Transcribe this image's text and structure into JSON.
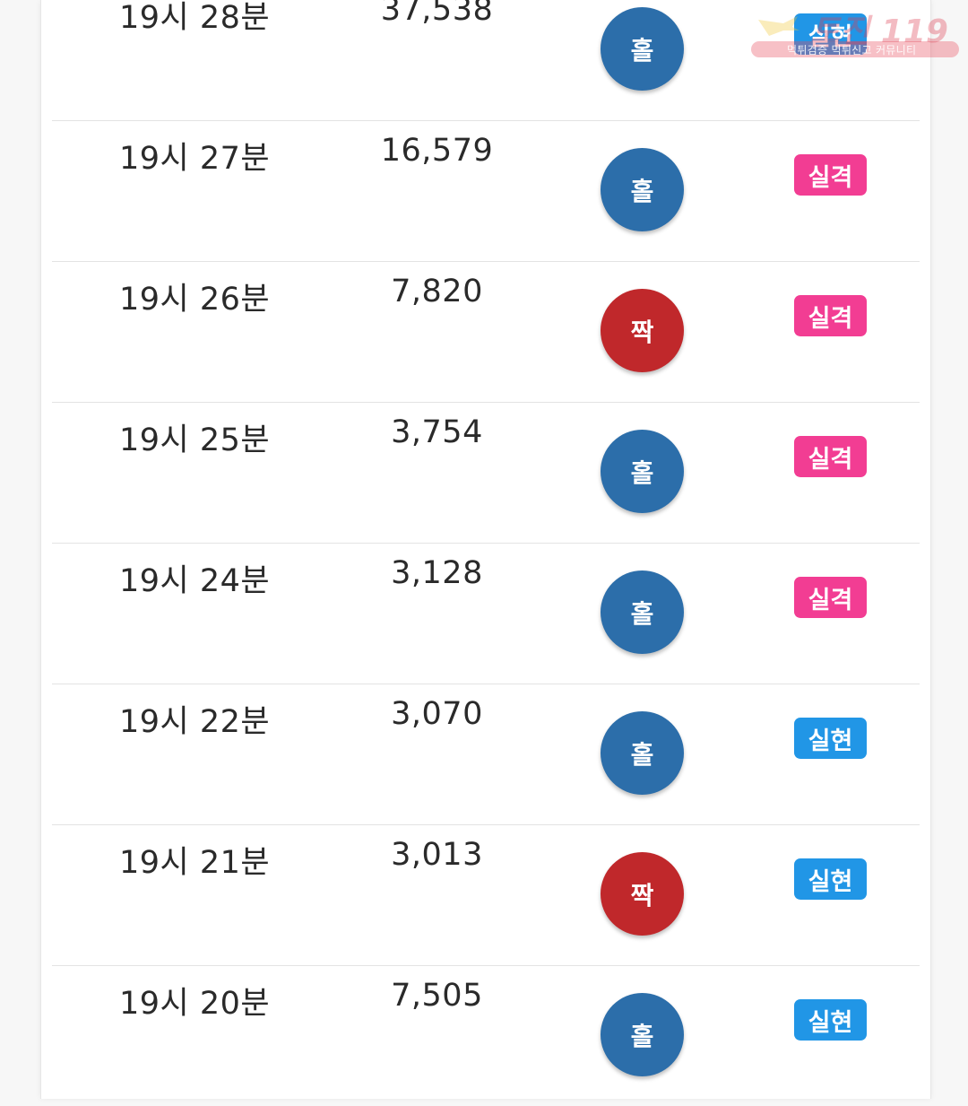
{
  "colors": {
    "odd_ball": "#2c6eaa",
    "even_ball": "#c0282b",
    "hit_badge": "#2196e6",
    "miss_badge": "#f23d93"
  },
  "watermark": {
    "title": "토진 119",
    "subtitle": "먹튀검증 먹튀신고 커뮤니티"
  },
  "rows": [
    {
      "time": "19시 28분",
      "number": "37,538",
      "ball": "홀",
      "ball_type": "odd",
      "result": "실현",
      "result_type": "hit"
    },
    {
      "time": "19시 27분",
      "number": "16,579",
      "ball": "홀",
      "ball_type": "odd",
      "result": "실격",
      "result_type": "miss"
    },
    {
      "time": "19시 26분",
      "number": "7,820",
      "ball": "짝",
      "ball_type": "even",
      "result": "실격",
      "result_type": "miss"
    },
    {
      "time": "19시 25분",
      "number": "3,754",
      "ball": "홀",
      "ball_type": "odd",
      "result": "실격",
      "result_type": "miss"
    },
    {
      "time": "19시 24분",
      "number": "3,128",
      "ball": "홀",
      "ball_type": "odd",
      "result": "실격",
      "result_type": "miss"
    },
    {
      "time": "19시 22분",
      "number": "3,070",
      "ball": "홀",
      "ball_type": "odd",
      "result": "실현",
      "result_type": "hit"
    },
    {
      "time": "19시 21분",
      "number": "3,013",
      "ball": "짝",
      "ball_type": "even",
      "result": "실현",
      "result_type": "hit"
    },
    {
      "time": "19시 20분",
      "number": "7,505",
      "ball": "홀",
      "ball_type": "odd",
      "result": "실현",
      "result_type": "hit"
    }
  ]
}
